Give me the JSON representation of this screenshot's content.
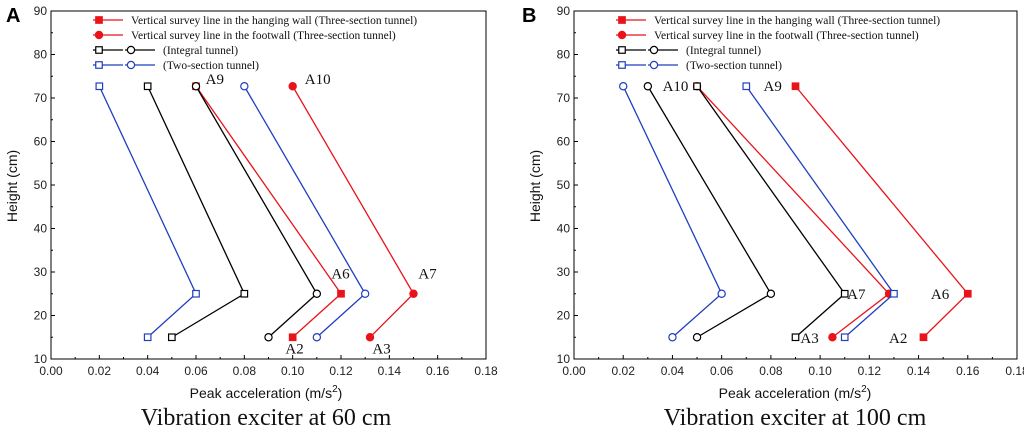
{
  "chart_data": [
    {
      "type": "line",
      "panel_label": "A",
      "caption": "Vibration exciter at 60 cm",
      "xlabel": "Peak acceleration (m/s",
      "xlabel_sup": "2",
      "xlabel_end": ")",
      "ylabel": "Height (cm)",
      "xlim": [
        0.0,
        0.18
      ],
      "ylim": [
        10,
        90
      ],
      "xticks": [
        "0.00",
        "0.02",
        "0.04",
        "0.06",
        "0.08",
        "0.10",
        "0.12",
        "0.14",
        "0.16",
        "0.18"
      ],
      "yticks": [
        "10",
        "20",
        "30",
        "40",
        "50",
        "60",
        "70",
        "80",
        "90"
      ],
      "series": [
        {
          "name": "Vertical survey line in the hanging wall (Three-section tunnel)",
          "color": "#e8141a",
          "marker": "filled-square",
          "points": [
            {
              "x": 0.06,
              "y": 72.7
            },
            {
              "x": 0.12,
              "y": 25
            },
            {
              "x": 0.1,
              "y": 15
            }
          ]
        },
        {
          "name": "Vertical survey line in the footwall (Three-section tunnel)",
          "color": "#e8141a",
          "marker": "filled-circle",
          "points": [
            {
              "x": 0.1,
              "y": 72.7
            },
            {
              "x": 0.15,
              "y": 25
            },
            {
              "x": 0.132,
              "y": 15
            }
          ]
        },
        {
          "name": "(Integral tunnel)",
          "color": "#000000",
          "marker": "open-square",
          "points": [
            {
              "x": 0.04,
              "y": 72.7
            },
            {
              "x": 0.08,
              "y": 25
            },
            {
              "x": 0.05,
              "y": 15
            }
          ]
        },
        {
          "name": "(Integral tunnel)",
          "color": "#000000",
          "marker": "open-circle",
          "points": [
            {
              "x": 0.06,
              "y": 72.7
            },
            {
              "x": 0.11,
              "y": 25
            },
            {
              "x": 0.09,
              "y": 15
            }
          ]
        },
        {
          "name": "(Two-section tunnel)",
          "color": "#1f3fbf",
          "marker": "open-square",
          "points": [
            {
              "x": 0.02,
              "y": 72.7
            },
            {
              "x": 0.06,
              "y": 25
            },
            {
              "x": 0.04,
              "y": 15
            }
          ]
        },
        {
          "name": "(Two-section tunnel)",
          "color": "#1f3fbf",
          "marker": "open-circle",
          "points": [
            {
              "x": 0.08,
              "y": 72.7
            },
            {
              "x": 0.13,
              "y": 25
            },
            {
              "x": 0.11,
              "y": 15
            }
          ]
        }
      ],
      "annotations": [
        {
          "text": "A9",
          "x": 0.064,
          "y": 73.2
        },
        {
          "text": "A10",
          "x": 0.105,
          "y": 73.2
        },
        {
          "text": "A6",
          "x": 0.116,
          "y": 28.5
        },
        {
          "text": "A7",
          "x": 0.152,
          "y": 28.5
        },
        {
          "text": "A2",
          "x": 0.097,
          "y": 11.3
        },
        {
          "text": "A3",
          "x": 0.133,
          "y": 11.3
        }
      ],
      "legend": {
        "rows": [
          {
            "text": "Vertical survey line in the hanging wall (Three-section tunnel)",
            "swatches": [
              {
                "color": "#e8141a",
                "marker": "filled-square"
              }
            ]
          },
          {
            "text": "Vertical survey line in the footwall (Three-section tunnel)",
            "swatches": [
              {
                "color": "#e8141a",
                "marker": "filled-circle"
              }
            ]
          },
          {
            "text": "(Integral tunnel)",
            "swatches": [
              {
                "color": "#000000",
                "marker": "open-square"
              },
              {
                "color": "#000000",
                "marker": "open-circle"
              }
            ]
          },
          {
            "text": "(Two-section tunnel)",
            "swatches": [
              {
                "color": "#1f3fbf",
                "marker": "open-square"
              },
              {
                "color": "#1f3fbf",
                "marker": "open-circle"
              }
            ]
          }
        ]
      }
    },
    {
      "type": "line",
      "panel_label": "B",
      "caption": "Vibration exciter at 100 cm",
      "xlabel": "Peak acceleration (m/s",
      "xlabel_sup": "2",
      "xlabel_end": ")",
      "ylabel": "Height (cm)",
      "xlim": [
        0.0,
        0.18
      ],
      "ylim": [
        10,
        90
      ],
      "xticks": [
        "0.00",
        "0.02",
        "0.04",
        "0.06",
        "0.08",
        "0.10",
        "0.12",
        "0.14",
        "0.16",
        "0.18"
      ],
      "yticks": [
        "10",
        "20",
        "30",
        "40",
        "50",
        "60",
        "70",
        "80",
        "90"
      ],
      "series": [
        {
          "name": "Vertical survey line in the hanging wall (Three-section tunnel)",
          "color": "#e8141a",
          "marker": "filled-square",
          "points": [
            {
              "x": 0.09,
              "y": 72.7
            },
            {
              "x": 0.16,
              "y": 25
            },
            {
              "x": 0.142,
              "y": 15
            }
          ]
        },
        {
          "name": "Vertical survey line in the footwall (Three-section tunnel)",
          "color": "#e8141a",
          "marker": "filled-circle",
          "points": [
            {
              "x": 0.05,
              "y": 72.7
            },
            {
              "x": 0.128,
              "y": 25
            },
            {
              "x": 0.105,
              "y": 15
            }
          ]
        },
        {
          "name": "(Integral tunnel)",
          "color": "#000000",
          "marker": "open-square",
          "points": [
            {
              "x": 0.05,
              "y": 72.7
            },
            {
              "x": 0.11,
              "y": 25
            },
            {
              "x": 0.09,
              "y": 15
            }
          ]
        },
        {
          "name": "(Integral tunnel)",
          "color": "#000000",
          "marker": "open-circle",
          "points": [
            {
              "x": 0.03,
              "y": 72.7
            },
            {
              "x": 0.08,
              "y": 25
            },
            {
              "x": 0.05,
              "y": 15
            }
          ]
        },
        {
          "name": "(Two-section tunnel)",
          "color": "#1f3fbf",
          "marker": "open-square",
          "points": [
            {
              "x": 0.07,
              "y": 72.7
            },
            {
              "x": 0.13,
              "y": 25
            },
            {
              "x": 0.11,
              "y": 15
            }
          ]
        },
        {
          "name": "(Two-section tunnel)",
          "color": "#1f3fbf",
          "marker": "open-circle",
          "points": [
            {
              "x": 0.02,
              "y": 72.7
            },
            {
              "x": 0.06,
              "y": 25
            },
            {
              "x": 0.04,
              "y": 15
            }
          ]
        }
      ],
      "annotations": [
        {
          "text": "A10",
          "x": 0.036,
          "y": 71.6
        },
        {
          "text": "A9",
          "x": 0.077,
          "y": 71.6
        },
        {
          "text": "A7",
          "x": 0.111,
          "y": 23.8
        },
        {
          "text": "A6",
          "x": 0.145,
          "y": 23.8
        },
        {
          "text": "A3",
          "x": 0.092,
          "y": 13.7
        },
        {
          "text": "A2",
          "x": 0.128,
          "y": 13.7
        }
      ],
      "legend": {
        "rows": [
          {
            "text": "Vertical survey line in the hanging wall (Three-section tunnel)",
            "swatches": [
              {
                "color": "#e8141a",
                "marker": "filled-square"
              }
            ]
          },
          {
            "text": "Vertical survey line in the footwall (Three-section tunnel)",
            "swatches": [
              {
                "color": "#e8141a",
                "marker": "filled-circle"
              }
            ]
          },
          {
            "text": "(Integral tunnel)",
            "swatches": [
              {
                "color": "#000000",
                "marker": "open-square"
              },
              {
                "color": "#000000",
                "marker": "open-circle"
              }
            ]
          },
          {
            "text": "(Two-section tunnel)",
            "swatches": [
              {
                "color": "#1f3fbf",
                "marker": "open-square"
              },
              {
                "color": "#1f3fbf",
                "marker": "open-circle"
              }
            ]
          }
        ]
      }
    }
  ]
}
